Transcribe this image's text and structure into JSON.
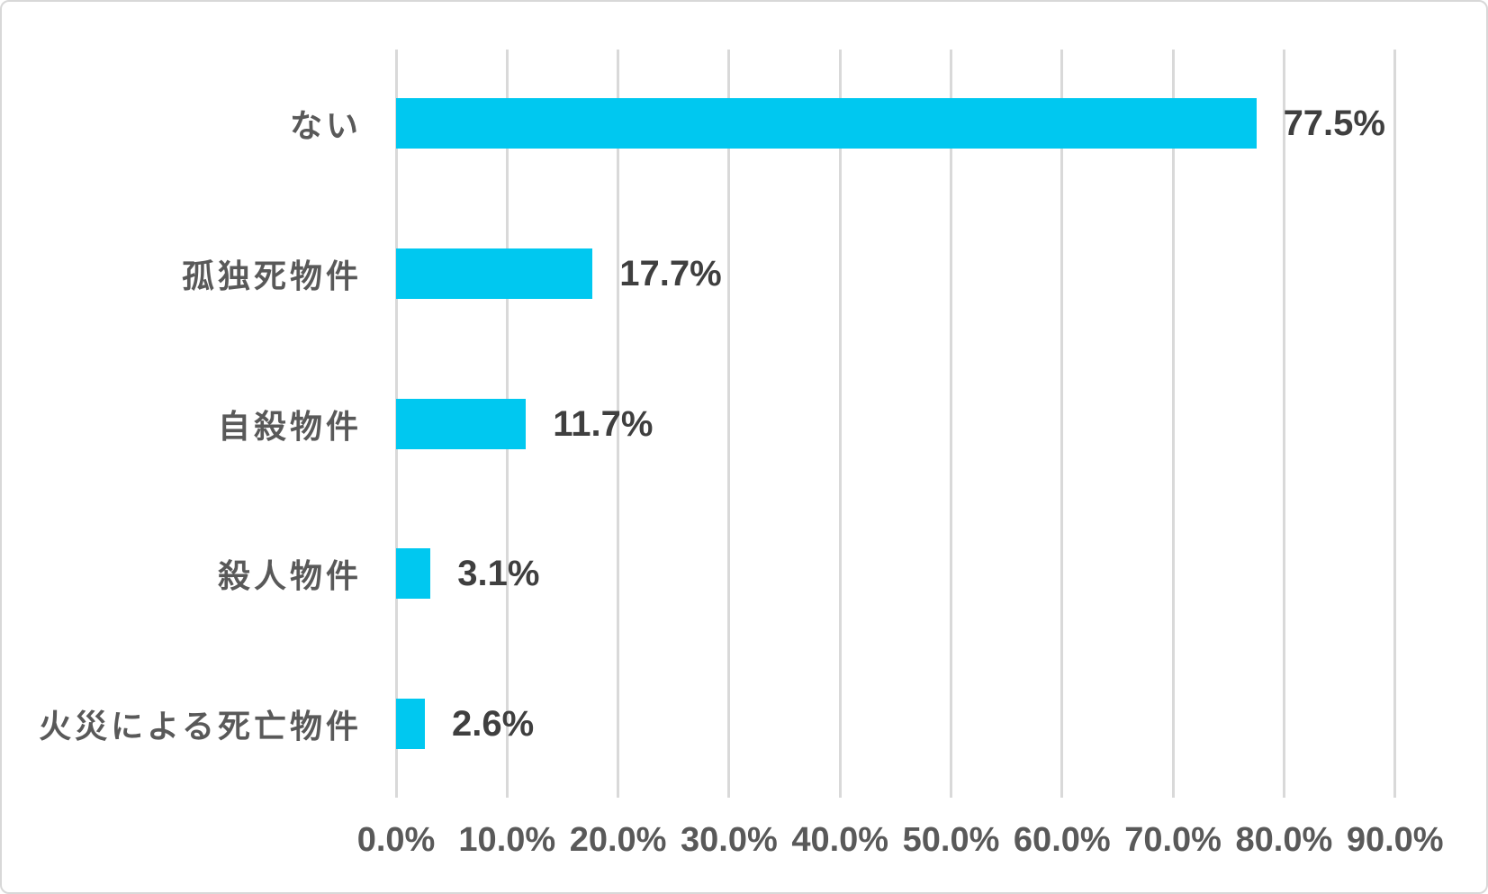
{
  "chart_data": {
    "type": "bar",
    "orientation": "horizontal",
    "title": "",
    "xlabel": "",
    "ylabel": "",
    "categories": [
      "ない",
      "孤独死物件",
      "自殺物件",
      "殺人物件",
      "火災による死亡物件"
    ],
    "values": [
      77.5,
      17.7,
      11.7,
      3.1,
      2.6
    ],
    "value_labels": [
      "77.5%",
      "17.7%",
      "11.7%",
      "3.1%",
      "2.6%"
    ],
    "xlim": [
      0,
      90
    ],
    "x_ticks": [
      0,
      10,
      20,
      30,
      40,
      50,
      60,
      70,
      80,
      90
    ],
    "x_tick_labels": [
      "0.0%",
      "10.0%",
      "20.0%",
      "30.0%",
      "40.0%",
      "50.0%",
      "60.0%",
      "70.0%",
      "80.0%",
      "90.0%"
    ],
    "grid": "vertical-only",
    "legend": "none",
    "colors": {
      "bar": "#00C8F0",
      "gridline": "#D9D9D9",
      "category_label": "#595959",
      "value_label": "#3F3F3F",
      "tick_label": "#595959",
      "background": "#FFFFFF",
      "frame_border": "#D8D8D8"
    }
  }
}
